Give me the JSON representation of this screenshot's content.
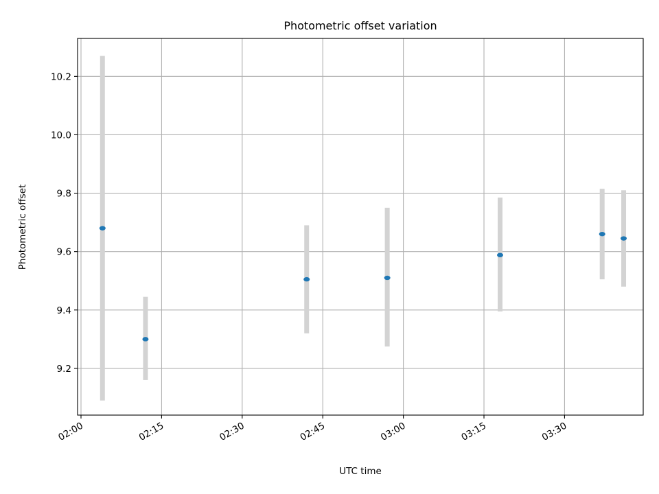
{
  "chart_data": {
    "type": "scatter",
    "title": "Photometric offset variation",
    "xlabel": "UTC time",
    "ylabel": "Photometric offset",
    "x_axis_type": "time",
    "xlim": [
      "02:00",
      "03:44"
    ],
    "ylim": [
      9.04,
      10.33
    ],
    "x_ticks": [
      "02:00",
      "02:15",
      "02:30",
      "02:45",
      "03:00",
      "03:15",
      "03:30"
    ],
    "y_ticks": [
      "9.2",
      "9.4",
      "9.6",
      "9.8",
      "10.0",
      "10.2"
    ],
    "y_tick_values": [
      9.2,
      9.4,
      9.6,
      9.8,
      10.0,
      10.2
    ],
    "grid": true,
    "marker_color": "#1f77b4",
    "errorbar_color": "#d3d3d3",
    "points": [
      {
        "time": "02:04",
        "y": 9.68,
        "y_low": 9.09,
        "y_high": 10.27
      },
      {
        "time": "02:12",
        "y": 9.3,
        "y_low": 9.16,
        "y_high": 9.445
      },
      {
        "time": "02:42",
        "y": 9.505,
        "y_low": 9.32,
        "y_high": 9.69
      },
      {
        "time": "02:57",
        "y": 9.51,
        "y_low": 9.275,
        "y_high": 9.75
      },
      {
        "time": "03:18",
        "y": 9.588,
        "y_low": 9.395,
        "y_high": 9.785
      },
      {
        "time": "03:37",
        "y": 9.66,
        "y_low": 9.505,
        "y_high": 9.815
      },
      {
        "time": "03:41",
        "y": 9.645,
        "y_low": 9.48,
        "y_high": 9.81
      }
    ]
  }
}
